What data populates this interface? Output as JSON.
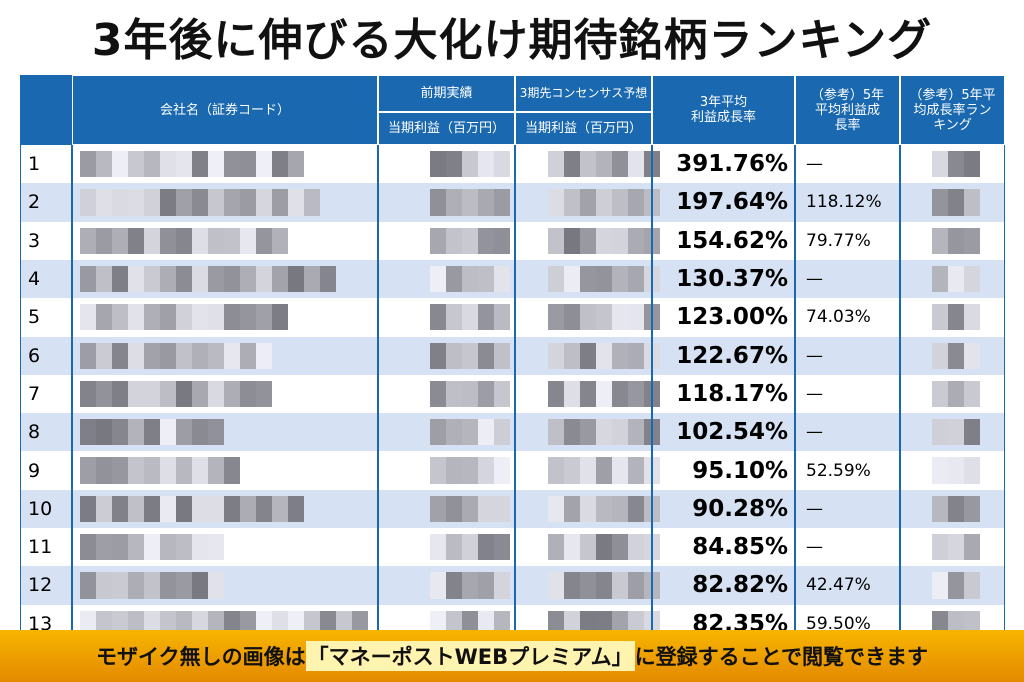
{
  "title": "3年後に伸びる大化け期待銘柄ランキング",
  "table": {
    "header": {
      "company": "会社名（証券コード）",
      "prev_group": "前期実績",
      "prev_profit": "当期利益（百万円）",
      "cons_group": "3期先コンセンサス予想",
      "cons_profit": "当期利益（百万円）",
      "growth3": "3年平均\n利益成長率",
      "growth5": "（参考）5年\n平均利益成\n長率",
      "rank5": "（参考）5年平\n均成長率ラン\nキング"
    },
    "rows": [
      [
        1,
        "391.76%",
        "—"
      ],
      [
        2,
        "197.64%",
        "118.12%"
      ],
      [
        3,
        "154.62%",
        "79.77%"
      ],
      [
        4,
        "130.37%",
        "—"
      ],
      [
        5,
        "123.00%",
        "74.03%"
      ],
      [
        6,
        "122.67%",
        "—"
      ],
      [
        7,
        "118.17%",
        "—"
      ],
      [
        8,
        "102.54%",
        "—"
      ],
      [
        9,
        "95.10%",
        "52.59%"
      ],
      [
        10,
        "90.28%",
        "—"
      ],
      [
        11,
        "84.85%",
        "—"
      ],
      [
        12,
        "82.82%",
        "42.47%"
      ],
      [
        13,
        "82.35%",
        "59.50%"
      ]
    ]
  },
  "banner": {
    "lead": "モザイク無しの画像は",
    "highlight": "「マネーポストWEBプレミアム」",
    "tail": "に登録することで閲覧できます"
  }
}
